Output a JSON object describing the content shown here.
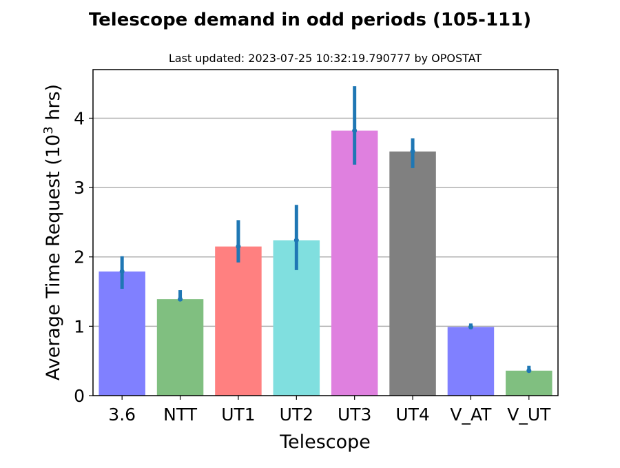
{
  "chart_data": {
    "type": "bar",
    "title": "Telescope demand in odd periods (105-111)",
    "subtitle": "Last updated: 2023-07-25 10:32:19.790777 by OPOSTAT",
    "xlabel": "Telescope",
    "ylabel_main": "Average Time Request (10",
    "ylabel_sup": "3",
    "ylabel_end": " hrs)",
    "categories": [
      "3.6",
      "NTT",
      "UT1",
      "UT2",
      "UT3",
      "UT4",
      "V_AT",
      "V_UT"
    ],
    "values": [
      1.79,
      1.39,
      2.15,
      2.24,
      3.82,
      3.52,
      0.99,
      0.36
    ],
    "error_low": [
      1.54,
      1.37,
      1.92,
      1.81,
      3.33,
      3.28,
      0.96,
      0.34
    ],
    "error_high": [
      2.01,
      1.52,
      2.53,
      2.75,
      4.46,
      3.71,
      1.04,
      0.43
    ],
    "bar_colors": [
      "#8080ff",
      "#80bf80",
      "#ff8080",
      "#80dfdf",
      "#df80df",
      "#808080",
      "#8080ff",
      "#80bf80"
    ],
    "error_color": "#1f77b4",
    "yticks": [
      "0",
      "1",
      "2",
      "3",
      "4"
    ],
    "ylim": [
      0,
      4.7
    ],
    "grid": "horizontal"
  }
}
